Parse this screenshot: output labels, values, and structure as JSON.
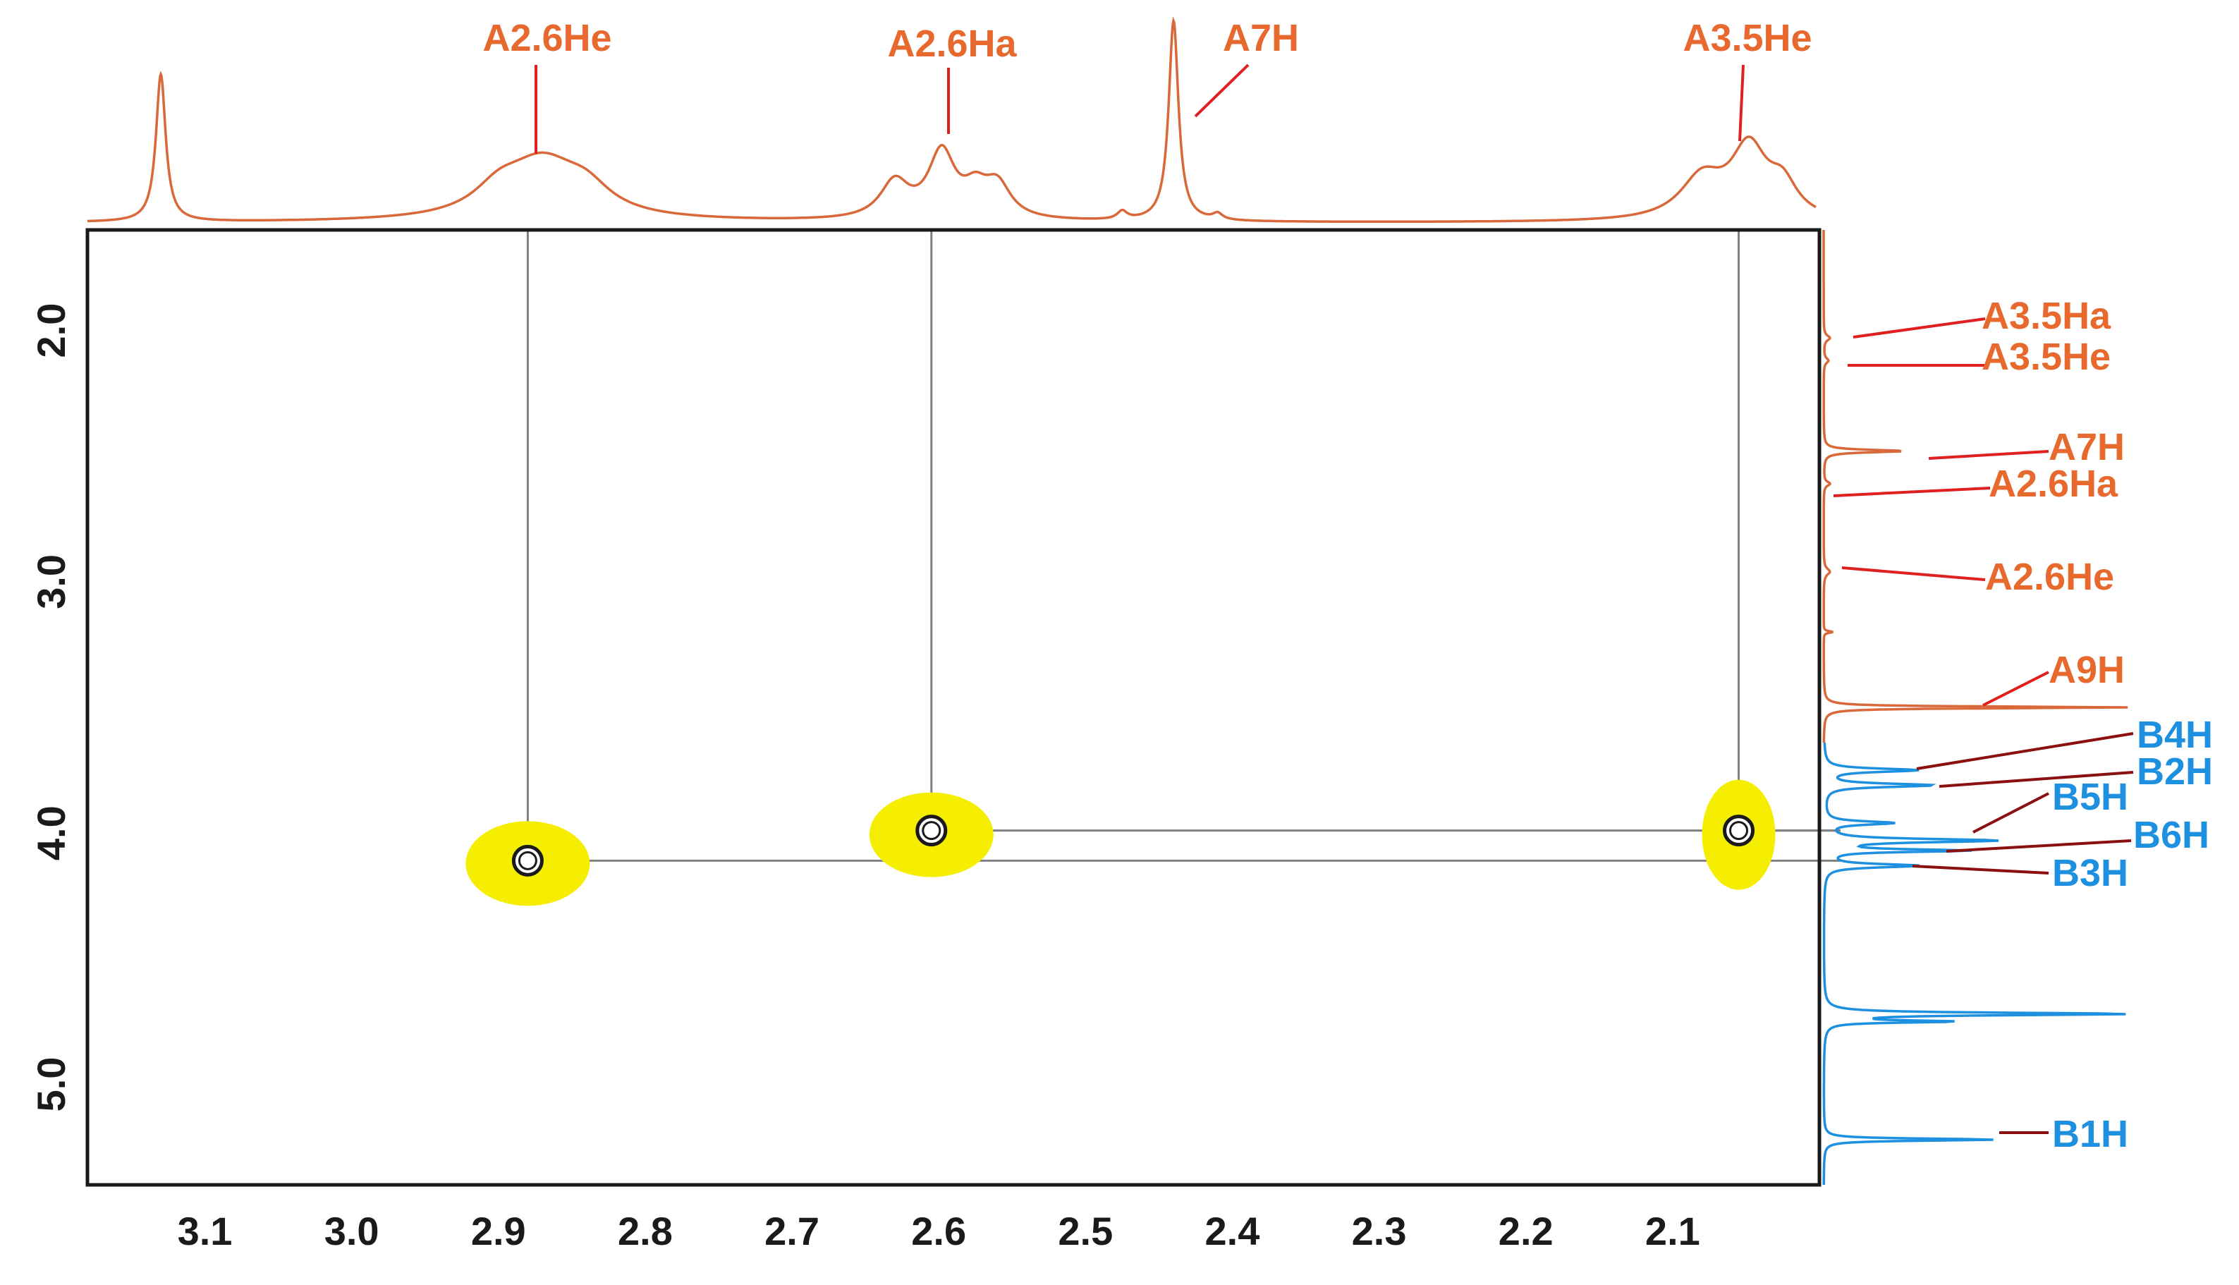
{
  "chart_data": {
    "type": "heatmap",
    "subtype": "2D NMR correlation spectrum (COSY-style) with 1D projections",
    "title": "",
    "xlabel": "",
    "ylabel": "",
    "xlim": [
      3.18,
      2.0
    ],
    "ylim": [
      1.6,
      5.4
    ],
    "x_ticks": [
      "3.1",
      "3.0",
      "2.9",
      "2.8",
      "2.7",
      "2.6",
      "2.5",
      "2.4",
      "2.3",
      "2.2",
      "2.1"
    ],
    "y_ticks": [
      "2.0",
      "3.0",
      "4.0",
      "5.0"
    ],
    "x_tick_values": [
      3.1,
      3.0,
      2.9,
      2.8,
      2.7,
      2.6,
      2.5,
      2.4,
      2.3,
      2.2,
      2.1
    ],
    "y_tick_values": [
      2.0,
      3.0,
      4.0,
      5.0
    ],
    "grid": false,
    "colors": {
      "top_projection": "#d9683a",
      "right_projection_A": "#d9683a",
      "right_projection_B": "#1e90e0",
      "label_A": "#e8692e",
      "label_B": "#1e90e0",
      "leader_A": "#e02020",
      "leader_B": "#8b1010",
      "highlight": "#f5ee00",
      "guide_line": "#808080"
    },
    "cross_peaks": [
      {
        "x": 2.88,
        "y": 4.11
      },
      {
        "x": 2.605,
        "y": 3.99
      },
      {
        "x": 2.055,
        "y": 3.99
      }
    ],
    "top_projection_labels": [
      {
        "text": "A2.6He",
        "x": 2.87
      },
      {
        "text": "A2.6Ha",
        "x": 2.595
      },
      {
        "text": "A7H",
        "x": 2.44
      },
      {
        "text": "A3.5He",
        "x": 2.045
      }
    ],
    "right_projection_labels": [
      {
        "text": "A3.5Ha",
        "y": 2.03,
        "group": "A"
      },
      {
        "text": "A3.5He",
        "y": 2.12,
        "group": "A"
      },
      {
        "text": "A7H",
        "y": 2.48,
        "group": "A"
      },
      {
        "text": "A2.6Ha",
        "y": 2.61,
        "group": "A"
      },
      {
        "text": "A2.6He",
        "y": 2.96,
        "group": "A"
      },
      {
        "text": "A9H",
        "y": 3.5,
        "group": "A"
      },
      {
        "text": "B4H",
        "y": 3.75,
        "group": "B"
      },
      {
        "text": "B2H",
        "y": 3.81,
        "group": "B"
      },
      {
        "text": "B5H",
        "y": 3.96,
        "group": "B"
      },
      {
        "text": "B6H",
        "y": 4.03,
        "group": "B"
      },
      {
        "text": "B3H",
        "y": 4.13,
        "group": "B"
      },
      {
        "text": "B1H",
        "y": 5.22,
        "group": "B"
      }
    ],
    "top_projection_peaks": [
      {
        "x": 3.13,
        "h": 0.72,
        "w": 0.004
      },
      {
        "x": 2.87,
        "h": 0.28,
        "w": 0.032
      },
      {
        "x": 2.84,
        "h": 0.1,
        "w": 0.02
      },
      {
        "x": 2.9,
        "h": 0.1,
        "w": 0.02
      },
      {
        "x": 2.63,
        "h": 0.18,
        "w": 0.012
      },
      {
        "x": 2.598,
        "h": 0.32,
        "w": 0.011
      },
      {
        "x": 2.575,
        "h": 0.12,
        "w": 0.01
      },
      {
        "x": 2.56,
        "h": 0.16,
        "w": 0.011
      },
      {
        "x": 2.44,
        "h": 0.98,
        "w": 0.004
      },
      {
        "x": 2.475,
        "h": 0.04,
        "w": 0.004
      },
      {
        "x": 2.41,
        "h": 0.03,
        "w": 0.004
      },
      {
        "x": 2.08,
        "h": 0.2,
        "w": 0.018
      },
      {
        "x": 2.048,
        "h": 0.34,
        "w": 0.015
      },
      {
        "x": 2.025,
        "h": 0.15,
        "w": 0.012
      }
    ],
    "right_projection_peaks_A": [
      {
        "y": 2.03,
        "h": 0.02,
        "w": 0.012
      },
      {
        "y": 2.12,
        "h": 0.015,
        "w": 0.012
      },
      {
        "y": 2.48,
        "h": 0.26,
        "w": 0.006
      },
      {
        "y": 2.61,
        "h": 0.02,
        "w": 0.01
      },
      {
        "y": 2.96,
        "h": 0.02,
        "w": 0.015
      },
      {
        "y": 3.2,
        "h": 0.03,
        "w": 0.004
      },
      {
        "y": 3.5,
        "h": 0.98,
        "w": 0.004
      }
    ],
    "right_projection_peaks_B": [
      {
        "y": 3.75,
        "h": 0.3,
        "w": 0.008
      },
      {
        "y": 3.81,
        "h": 0.35,
        "w": 0.008
      },
      {
        "y": 3.96,
        "h": 0.22,
        "w": 0.008
      },
      {
        "y": 4.03,
        "h": 0.55,
        "w": 0.008
      },
      {
        "y": 4.07,
        "h": 0.45,
        "w": 0.006
      },
      {
        "y": 4.13,
        "h": 0.3,
        "w": 0.008
      },
      {
        "y": 4.72,
        "h": 0.98,
        "w": 0.006
      },
      {
        "y": 4.75,
        "h": 0.4,
        "w": 0.005
      },
      {
        "y": 5.22,
        "h": 0.55,
        "w": 0.005
      }
    ]
  }
}
